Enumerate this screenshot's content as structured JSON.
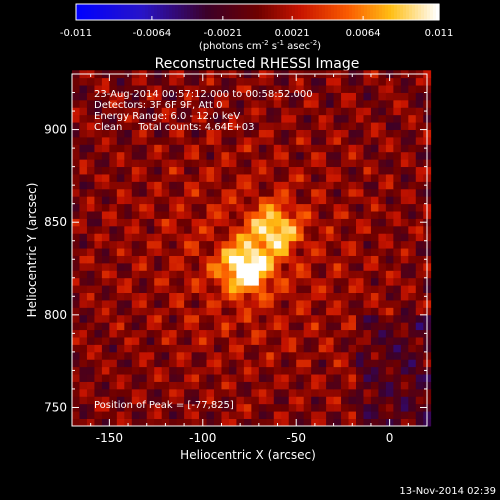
{
  "chart_data": {
    "type": "heatmap",
    "title": "Reconstructed RHESSI Image",
    "xlabel": "Heliocentric X (arcsec)",
    "ylabel": "Heliocentric Y (arcsec)",
    "xlim": [
      -170,
      20
    ],
    "ylim": [
      740,
      930
    ],
    "xticks": [
      -150,
      -100,
      -50,
      0
    ],
    "yticks": [
      750,
      800,
      850,
      900
    ],
    "colorbar": {
      "min": -0.011,
      "max": 0.011,
      "ticks": [
        "-0.011",
        "-0.0064",
        "-0.0021",
        "0.0021",
        "0.0064",
        "0.011"
      ],
      "unit_prefix": "(photons cm",
      "unit_exp1": "-2",
      "unit_mid1": " s",
      "unit_exp2": "-1",
      "unit_mid2": " asec",
      "unit_exp3": "-2",
      "unit_suffix": ")"
    },
    "info": [
      "23-Aug-2014 00:57:12.000 to 00:58:52.000",
      "Detectors: 3F 6F 9F, Att 0",
      "Energy Range: 6.0 - 12.0 keV",
      "Clean     Total counts: 4.64E+03"
    ],
    "peak_label": "Position of Peak = [-77,825]",
    "sources": [
      {
        "x": -77,
        "y": 825,
        "peak": 0.011
      },
      {
        "x": -62,
        "y": 846,
        "peak": 0.0085
      }
    ],
    "grid": false
  },
  "footer_date": "13-Nov-2014 02:39"
}
